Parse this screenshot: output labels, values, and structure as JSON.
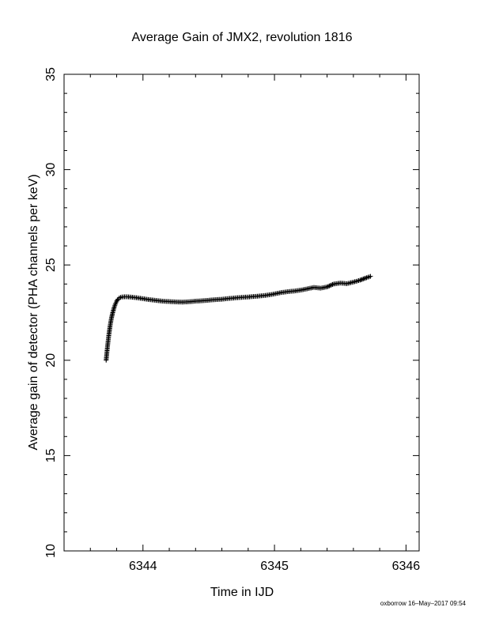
{
  "chart_data": {
    "type": "scatter",
    "title": "Average Gain of JMX2, revolution 1816",
    "xlabel": "Time in IJD",
    "ylabel": "Average gain of detector (PHA channels per keV)",
    "xlim": [
      6343.4,
      6346.1
    ],
    "ylim": [
      10,
      35
    ],
    "x_ticks": [
      6344,
      6345,
      6346
    ],
    "x_tick_labels": [
      "6344",
      "6345",
      "6346"
    ],
    "y_ticks": [
      10,
      15,
      20,
      25,
      30,
      35
    ],
    "y_tick_labels": [
      "10",
      "15",
      "20",
      "25",
      "30",
      "35"
    ],
    "grid": false,
    "marker": "plus",
    "color": "#000000",
    "series": [
      {
        "x": [
          6343.72,
          6343.73,
          6343.74,
          6343.75,
          6343.76,
          6343.77,
          6343.78,
          6343.79,
          6343.8,
          6343.81,
          6343.82,
          6343.83,
          6343.84,
          6343.86,
          6343.88,
          6343.9,
          6343.95,
          6344.0,
          6344.05,
          6344.1,
          6344.15,
          6344.2,
          6344.25,
          6344.3,
          6344.35,
          6344.4,
          6344.45,
          6344.5,
          6344.55,
          6344.6,
          6344.65,
          6344.7,
          6344.75,
          6344.8,
          6344.85,
          6344.9,
          6344.95,
          6345.0,
          6345.05,
          6345.1,
          6345.15,
          6345.2,
          6345.25,
          6345.3,
          6345.35,
          6345.4,
          6345.45,
          6345.5,
          6345.55,
          6345.6,
          6345.65,
          6345.7,
          6345.73
        ],
        "y": [
          20.0,
          20.7,
          21.3,
          21.8,
          22.2,
          22.5,
          22.75,
          22.95,
          23.1,
          23.2,
          23.27,
          23.3,
          23.32,
          23.33,
          23.33,
          23.32,
          23.28,
          23.23,
          23.18,
          23.14,
          23.1,
          23.08,
          23.06,
          23.05,
          23.07,
          23.1,
          23.12,
          23.15,
          23.18,
          23.2,
          23.24,
          23.27,
          23.3,
          23.32,
          23.35,
          23.38,
          23.42,
          23.48,
          23.55,
          23.6,
          23.63,
          23.68,
          23.75,
          23.82,
          23.78,
          23.85,
          24.0,
          24.05,
          24.02,
          24.1,
          24.2,
          24.33,
          24.4
        ]
      }
    ]
  },
  "footer": {
    "credit": "oxborrow 16–May–2017 09:54"
  }
}
